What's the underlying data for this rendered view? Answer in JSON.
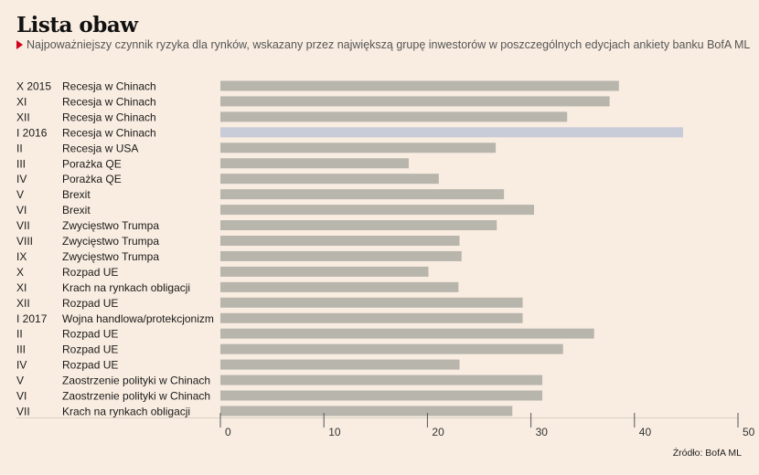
{
  "header": {
    "title": "Lista obaw",
    "subtitle": "Najpoważniejszy czynnik ryzyka dla rynków, wskazany przez największą grupę inwestorów w poszczególnych edycjach ankiety banku BofA ML"
  },
  "footer": {
    "source": "Źródło: BofA ML"
  },
  "colors": {
    "bar": "#b8b5ad",
    "highlight": "#c8cbd8",
    "background": "#f9ede1",
    "accent": "#d0021b"
  },
  "chart_data": {
    "type": "bar",
    "orientation": "horizontal",
    "title": "Lista obaw",
    "subtitle": "Najpoważniejszy czynnik ryzyka dla rynków, wskazany przez największą grupę inwestorów w poszczególnych edycjach ankiety banku BofA ML",
    "xlim": [
      0,
      50
    ],
    "xticks": [
      0,
      10,
      20,
      30,
      40,
      50
    ],
    "grid": false,
    "highlight_index": 3,
    "rows": [
      {
        "period": "X 2015",
        "risk": "Recesja w Chinach",
        "value": 38.5
      },
      {
        "period": "XI",
        "risk": "Recesja w Chinach",
        "value": 37.6
      },
      {
        "period": "XII",
        "risk": "Recesja w Chinach",
        "value": 33.5
      },
      {
        "period": "I 2016",
        "risk": "Recesja w Chinach",
        "value": 44.7
      },
      {
        "period": "II",
        "risk": "Recesja w USA",
        "value": 26.6
      },
      {
        "period": "III",
        "risk": "Porażka QE",
        "value": 18.2
      },
      {
        "period": "IV",
        "risk": "Porażka QE",
        "value": 21.1
      },
      {
        "period": "V",
        "risk": "Brexit",
        "value": 27.4
      },
      {
        "period": "VI",
        "risk": "Brexit",
        "value": 30.3
      },
      {
        "period": "VII",
        "risk": "Zwycięstwo Trumpa",
        "value": 26.7
      },
      {
        "period": "VIII",
        "risk": "Zwycięstwo Trumpa",
        "value": 23.1
      },
      {
        "period": "IX",
        "risk": "Zwycięstwo Trumpa",
        "value": 23.3
      },
      {
        "period": "X",
        "risk": "Rozpad UE",
        "value": 20.1
      },
      {
        "period": "XI",
        "risk": "Krach na rynkach obligacji",
        "value": 23.0
      },
      {
        "period": "XII",
        "risk": "Rozpad UE",
        "value": 29.2
      },
      {
        "period": "I 2017",
        "risk": "Wojna handlowa/protekcjonizm",
        "value": 29.2
      },
      {
        "period": "II",
        "risk": "Rozpad UE",
        "value": 36.1
      },
      {
        "period": "III",
        "risk": "Rozpad UE",
        "value": 33.1
      },
      {
        "period": "IV",
        "risk": "Rozpad UE",
        "value": 23.1
      },
      {
        "period": "V",
        "risk": "Zaostrzenie polityki w Chinach",
        "value": 31.1
      },
      {
        "period": "VI",
        "risk": "Zaostrzenie polityki w Chinach",
        "value": 31.1
      },
      {
        "period": "VII",
        "risk": "Krach na rynkach obligacji",
        "value": 28.2
      }
    ]
  }
}
